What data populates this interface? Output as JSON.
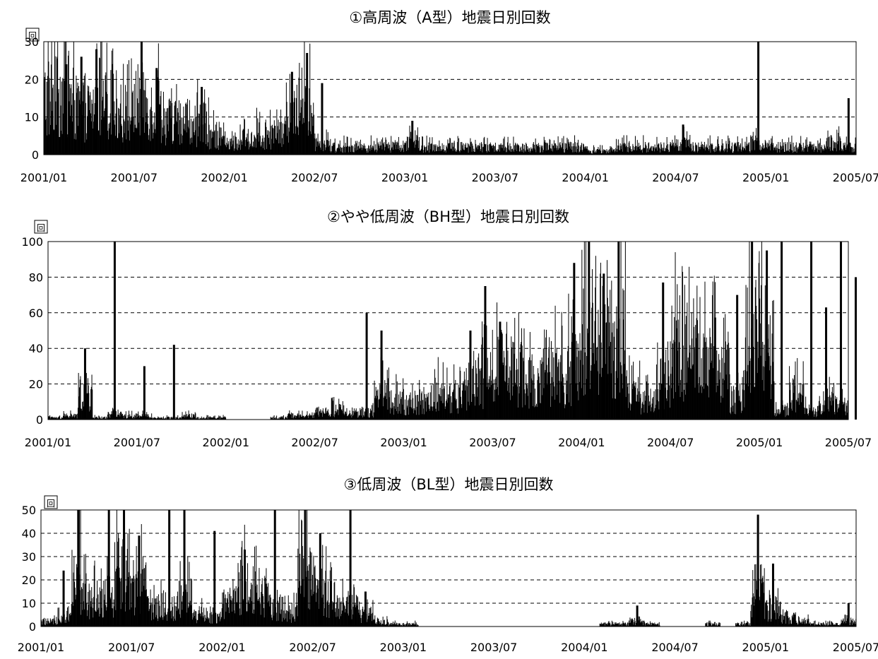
{
  "chart_data": [
    {
      "type": "bar",
      "title": "①高周波（A型）地震日別回数",
      "ylabel": "回",
      "ylim": [
        0,
        30
      ],
      "yticks": [
        "0",
        "10",
        "20",
        "30"
      ],
      "gridlines": [
        10,
        20
      ],
      "xlim": [
        "2001/01",
        "2005/07"
      ],
      "xticks": [
        "2001/01",
        "2001/07",
        "2002/01",
        "2002/07",
        "2003/01",
        "2003/07",
        "2004/01",
        "2004/07",
        "2005/01",
        "2005/07"
      ],
      "grid": "horizontal dashed",
      "bar_color": "#000000",
      "x": [
        "2001/01",
        "2001/02",
        "2001/03",
        "2001/04",
        "2001/05",
        "2001/06",
        "2001/07",
        "2001/08",
        "2001/09",
        "2001/10",
        "2001/11",
        "2001/12",
        "2002/01",
        "2002/02",
        "2002/03",
        "2002/04",
        "2002/05",
        "2002/06",
        "2002/07",
        "2002/08",
        "2002/09",
        "2002/10",
        "2002/11",
        "2002/12",
        "2003/01",
        "2003/02",
        "2003/03",
        "2003/04",
        "2003/05",
        "2003/06",
        "2003/07",
        "2003/08",
        "2003/09",
        "2003/10",
        "2003/11",
        "2003/12",
        "2004/01",
        "2004/02",
        "2004/03",
        "2004/04",
        "2004/05",
        "2004/06",
        "2004/07",
        "2004/08",
        "2004/09",
        "2004/10",
        "2004/11",
        "2004/12",
        "2005/01",
        "2005/02",
        "2005/03",
        "2005/04",
        "2005/05",
        "2005/06",
        "2005/07"
      ],
      "values": [
        15,
        16,
        12,
        12,
        13,
        10,
        14,
        12,
        9,
        6,
        8,
        5,
        3,
        4,
        5,
        5,
        10,
        14,
        3,
        2,
        2,
        2,
        2,
        2,
        3,
        2,
        2,
        2,
        2,
        2,
        2,
        2,
        2,
        2,
        2,
        2,
        1,
        1,
        2,
        2,
        2,
        2,
        3,
        2,
        2,
        2,
        2,
        3,
        2,
        2,
        2,
        2,
        3,
        2,
        3
      ],
      "peaks": [
        {
          "x": "2001/02",
          "value": 24
        },
        {
          "x": "2001/03",
          "value": 26
        },
        {
          "x": "2001/04",
          "value": 28
        },
        {
          "x": "2001/07",
          "value": 31
        },
        {
          "x": "2001/08",
          "value": 23
        },
        {
          "x": "2001/11",
          "value": 18
        },
        {
          "x": "2002/05",
          "value": 22
        },
        {
          "x": "2002/06",
          "value": 27
        },
        {
          "x": "2002/07",
          "value": 19
        },
        {
          "x": "2003/01",
          "value": 9
        },
        {
          "x": "2004/07",
          "value": 8
        },
        {
          "x": "2004/12",
          "value": 31
        },
        {
          "x": "2005/06",
          "value": 15
        }
      ]
    },
    {
      "type": "bar",
      "title": "②やや低周波（BH型）地震日別回数",
      "ylabel": "回",
      "ylim": [
        0,
        100
      ],
      "yticks": [
        "0",
        "20",
        "40",
        "60",
        "80",
        "100"
      ],
      "gridlines": [
        20,
        40,
        60,
        80
      ],
      "xlim": [
        "2001/01",
        "2005/07"
      ],
      "xticks": [
        "2001/01",
        "2001/07",
        "2002/01",
        "2002/07",
        "2003/01",
        "2003/07",
        "2004/01",
        "2004/07",
        "2005/01",
        "2005/07"
      ],
      "grid": "horizontal dashed",
      "bar_color": "#000000",
      "x": [
        "2001/01",
        "2001/02",
        "2001/03",
        "2001/04",
        "2001/05",
        "2001/06",
        "2001/07",
        "2001/08",
        "2001/09",
        "2001/10",
        "2001/11",
        "2001/12",
        "2002/01",
        "2002/02",
        "2002/03",
        "2002/04",
        "2002/05",
        "2002/06",
        "2002/07",
        "2002/08",
        "2002/09",
        "2002/10",
        "2002/11",
        "2002/12",
        "2003/01",
        "2003/02",
        "2003/03",
        "2003/04",
        "2003/05",
        "2003/06",
        "2003/07",
        "2003/08",
        "2003/09",
        "2003/10",
        "2003/11",
        "2003/12",
        "2004/01",
        "2004/02",
        "2004/03",
        "2004/04",
        "2004/05",
        "2004/06",
        "2004/07",
        "2004/08",
        "2004/09",
        "2004/10",
        "2004/11",
        "2004/12",
        "2005/01",
        "2005/02",
        "2005/03",
        "2005/04",
        "2005/05",
        "2005/06",
        "2005/07"
      ],
      "values": [
        1,
        2,
        15,
        1,
        3,
        2,
        2,
        1,
        1,
        2,
        1,
        1,
        0,
        0,
        0,
        1,
        2,
        2,
        4,
        5,
        3,
        4,
        15,
        10,
        8,
        10,
        14,
        12,
        20,
        22,
        30,
        25,
        22,
        20,
        25,
        30,
        40,
        45,
        45,
        15,
        10,
        20,
        40,
        35,
        35,
        30,
        12,
        45,
        40,
        5,
        15,
        5,
        10,
        8,
        5
      ],
      "peaks": [
        {
          "x": "2001/03",
          "value": 40
        },
        {
          "x": "2001/05",
          "value": 100
        },
        {
          "x": "2001/07",
          "value": 30
        },
        {
          "x": "2001/09",
          "value": 42
        },
        {
          "x": "2002/10",
          "value": 60
        },
        {
          "x": "2002/11",
          "value": 50
        },
        {
          "x": "2003/05",
          "value": 50
        },
        {
          "x": "2003/06",
          "value": 75
        },
        {
          "x": "2003/07",
          "value": 55
        },
        {
          "x": "2003/12",
          "value": 88
        },
        {
          "x": "2004/01",
          "value": 100
        },
        {
          "x": "2004/02",
          "value": 82
        },
        {
          "x": "2004/03",
          "value": 100
        },
        {
          "x": "2004/06",
          "value": 77
        },
        {
          "x": "2004/11",
          "value": 70
        },
        {
          "x": "2004/12",
          "value": 100
        },
        {
          "x": "2005/01",
          "value": 95
        },
        {
          "x": "2005/02",
          "value": 100
        },
        {
          "x": "2005/04",
          "value": 100
        },
        {
          "x": "2005/05",
          "value": 63
        },
        {
          "x": "2005/06",
          "value": 100
        },
        {
          "x": "2005/07",
          "value": 80
        }
      ]
    },
    {
      "type": "bar",
      "title": "③低周波（BL型）地震日別回数",
      "ylabel": "回",
      "ylim": [
        0,
        50
      ],
      "yticks": [
        "0",
        "10",
        "20",
        "30",
        "40",
        "50"
      ],
      "gridlines": [
        10,
        20,
        30,
        40
      ],
      "xlim": [
        "2001/01",
        "2005/07"
      ],
      "xticks": [
        "2001/01",
        "2001/07",
        "2002/01",
        "2002/07",
        "2003/01",
        "2003/07",
        "2004/01",
        "2004/07",
        "2005/01",
        "2005/07"
      ],
      "grid": "horizontal dashed",
      "bar_color": "#000000",
      "x": [
        "2001/01",
        "2001/02",
        "2001/03",
        "2001/04",
        "2001/05",
        "2001/06",
        "2001/07",
        "2001/08",
        "2001/09",
        "2001/10",
        "2001/11",
        "2001/12",
        "2002/01",
        "2002/02",
        "2002/03",
        "2002/04",
        "2002/05",
        "2002/06",
        "2002/07",
        "2002/08",
        "2002/09",
        "2002/10",
        "2002/11",
        "2002/12",
        "2003/01",
        "2003/02",
        "2003/03",
        "2003/04",
        "2003/05",
        "2003/06",
        "2003/07",
        "2003/08",
        "2003/09",
        "2003/10",
        "2003/11",
        "2003/12",
        "2004/01",
        "2004/02",
        "2004/03",
        "2004/04",
        "2004/05",
        "2004/06",
        "2004/07",
        "2004/08",
        "2004/09",
        "2004/10",
        "2004/11",
        "2004/12",
        "2005/01",
        "2005/02",
        "2005/03",
        "2005/04",
        "2005/05",
        "2005/06",
        "2005/07"
      ],
      "values": [
        2,
        4,
        20,
        12,
        15,
        25,
        18,
        8,
        6,
        12,
        5,
        4,
        10,
        18,
        15,
        8,
        6,
        20,
        15,
        12,
        8,
        5,
        2,
        1,
        1,
        0,
        0,
        0,
        0,
        0,
        0,
        0,
        0,
        0,
        0,
        0,
        0,
        1,
        1,
        2,
        1,
        0,
        0,
        0,
        1,
        0,
        1,
        12,
        8,
        3,
        2,
        1,
        1,
        2,
        2
      ],
      "peaks": [
        {
          "x": "2001/02",
          "value": 24
        },
        {
          "x": "2001/03",
          "value": 50
        },
        {
          "x": "2001/05",
          "value": 50
        },
        {
          "x": "2001/06",
          "value": 50
        },
        {
          "x": "2001/07",
          "value": 39
        },
        {
          "x": "2001/09",
          "value": 50
        },
        {
          "x": "2001/10",
          "value": 50
        },
        {
          "x": "2001/12",
          "value": 41
        },
        {
          "x": "2002/02",
          "value": 33
        },
        {
          "x": "2002/04",
          "value": 50
        },
        {
          "x": "2002/06",
          "value": 50
        },
        {
          "x": "2002/07",
          "value": 40
        },
        {
          "x": "2002/09",
          "value": 50
        },
        {
          "x": "2002/10",
          "value": 15
        },
        {
          "x": "2004/04",
          "value": 9
        },
        {
          "x": "2004/12",
          "value": 48
        },
        {
          "x": "2005/01",
          "value": 27
        },
        {
          "x": "2005/06",
          "value": 10
        }
      ]
    }
  ]
}
